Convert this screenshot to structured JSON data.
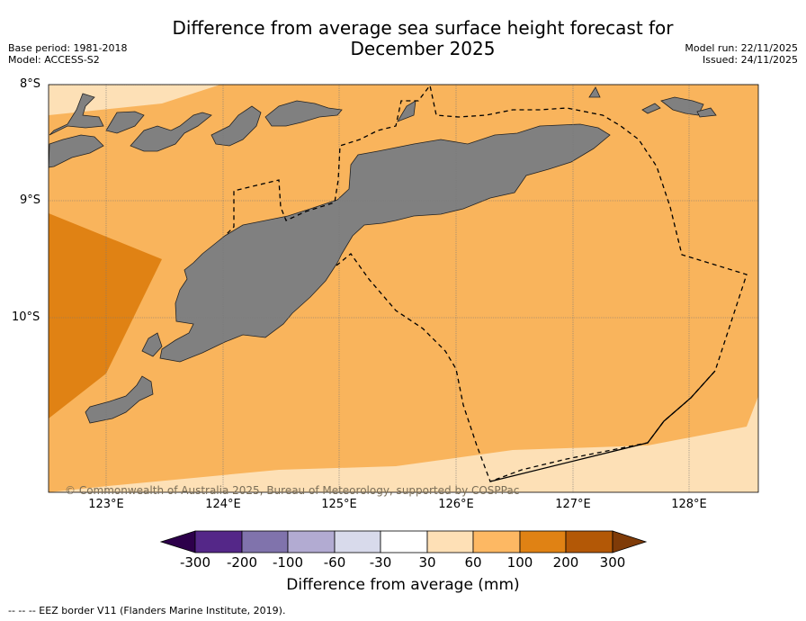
{
  "header": {
    "title_line1": "Difference from average sea surface height forecast for",
    "title_line2": "December 2025",
    "base_period": "Base period: 1981-2018",
    "model": "Model: ACCESS-S2",
    "model_run": "Model run: 22/11/2025",
    "issued": "Issued: 24/11/2025"
  },
  "map": {
    "lat_labels": [
      "8°S",
      "9°S",
      "10°S"
    ],
    "lon_labels": [
      "123°E",
      "124°E",
      "125°E",
      "126°E",
      "127°E",
      "128°E"
    ],
    "copyright": "© Commonwealth of Australia 2025, Bureau of Meteorology, supported by COSPPac",
    "colors": {
      "land": "#808080",
      "band_30_60": "#fde0b6",
      "band_60_100": "#f9b45c",
      "band_100_200": "#e08214",
      "ocean_border": "#000000"
    }
  },
  "colorbar": {
    "ticks": [
      "-300",
      "-200",
      "-100",
      "-60",
      "-30",
      "30",
      "60",
      "100",
      "200",
      "300"
    ],
    "colors": [
      "#2d004b",
      "#542788",
      "#8073ac",
      "#b2abd2",
      "#d8daeb",
      "#ffffff",
      "#fee0b6",
      "#fdb863",
      "#e08214",
      "#b35806",
      "#7f3b08"
    ],
    "label": "Difference from average (mm)"
  },
  "footnote": "--  --  -- EEZ border V11 (Flanders Marine Institute, 2019)."
}
